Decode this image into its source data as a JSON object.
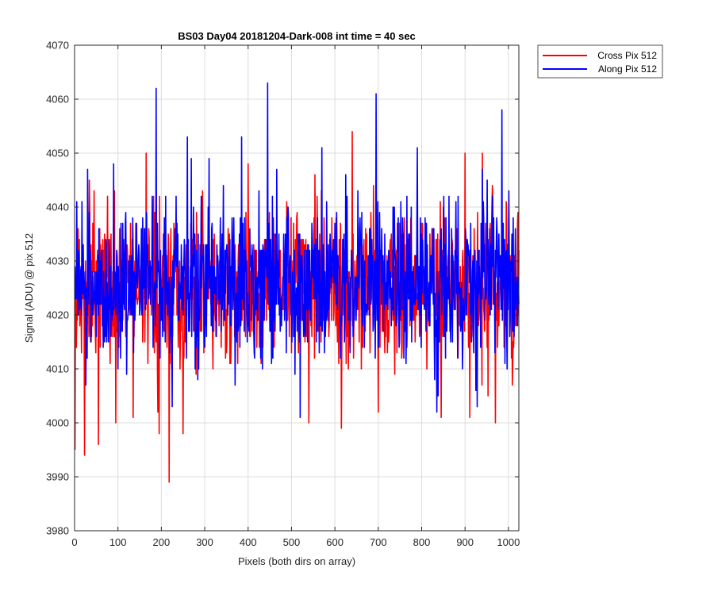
{
  "figure": {
    "title": "BS03 Day04 20181204-Dark-008 int time = 40 sec"
  },
  "colors": {
    "cross": "#ff0000",
    "along": "#0000ff",
    "grid": "#dcdcdc",
    "axis": "#262626"
  },
  "chart_data": {
    "type": "line",
    "title": "BS03 Day04 20181204-Dark-008 int time = 40 sec",
    "xlabel": "Pixels (both dirs on array)",
    "ylabel": "Signal (ADU) @ pix 512",
    "xlim": [
      0,
      1024
    ],
    "ylim": [
      3980,
      4070
    ],
    "xticks": [
      0,
      100,
      200,
      300,
      400,
      500,
      600,
      700,
      800,
      900,
      1000
    ],
    "yticks": [
      3980,
      3990,
      4000,
      4010,
      4020,
      4030,
      4040,
      4050,
      4060,
      4070
    ],
    "grid": true,
    "legend_position": "outside top-right",
    "series": [
      {
        "name": "Cross Pix 512",
        "color": "#ff0000",
        "mean": 4025,
        "x_range": [
          1,
          1024
        ],
        "features": [
          {
            "x": 1,
            "y": 3995
          },
          {
            "x": 23,
            "y": 3994
          },
          {
            "x": 35,
            "y": 4040
          },
          {
            "x": 45,
            "y": 4043
          },
          {
            "x": 55,
            "y": 3996
          },
          {
            "x": 95,
            "y": 4000
          },
          {
            "x": 135,
            "y": 4001
          },
          {
            "x": 165,
            "y": 4050
          },
          {
            "x": 195,
            "y": 3998
          },
          {
            "x": 218,
            "y": 3989
          },
          {
            "x": 250,
            "y": 3998
          },
          {
            "x": 295,
            "y": 4043
          },
          {
            "x": 400,
            "y": 4048
          },
          {
            "x": 540,
            "y": 4000
          },
          {
            "x": 615,
            "y": 3999
          },
          {
            "x": 640,
            "y": 4054
          },
          {
            "x": 700,
            "y": 4002
          },
          {
            "x": 845,
            "y": 4001
          },
          {
            "x": 900,
            "y": 4050
          },
          {
            "x": 940,
            "y": 4050
          },
          {
            "x": 970,
            "y": 4000
          },
          {
            "x": 1010,
            "y": 4011
          }
        ]
      },
      {
        "name": "Along Pix 512",
        "color": "#0000ff",
        "mean": 4026,
        "x_range": [
          1,
          1024
        ],
        "features": [
          {
            "x": 5,
            "y": 4041
          },
          {
            "x": 30,
            "y": 4047
          },
          {
            "x": 90,
            "y": 4048
          },
          {
            "x": 188,
            "y": 4062
          },
          {
            "x": 260,
            "y": 4053
          },
          {
            "x": 310,
            "y": 4049
          },
          {
            "x": 385,
            "y": 4053
          },
          {
            "x": 445,
            "y": 4063
          },
          {
            "x": 520,
            "y": 4001
          },
          {
            "x": 570,
            "y": 4051
          },
          {
            "x": 695,
            "y": 4061
          },
          {
            "x": 790,
            "y": 4051
          },
          {
            "x": 835,
            "y": 4002
          },
          {
            "x": 985,
            "y": 4058
          }
        ]
      }
    ]
  }
}
